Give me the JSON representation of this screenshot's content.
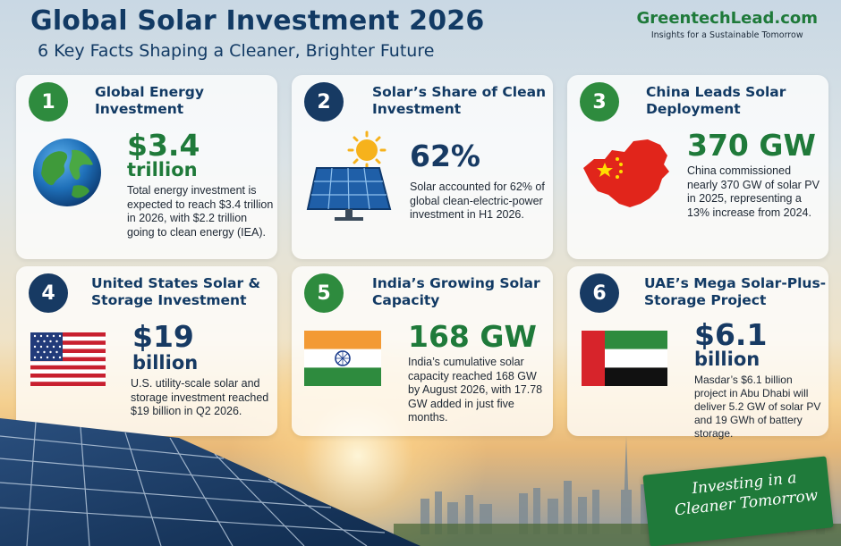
{
  "header": {
    "title": "Global Solar Investment 2026",
    "subtitle": "6 Key Facts Shaping a Cleaner, Brighter Future",
    "brand_name": "GreentechLead.com",
    "brand_tagline": "Insights for a Sustainable Tomorrow"
  },
  "cards": [
    {
      "number": "1",
      "title": "Global Energy Investment",
      "stat_main": "$3.4",
      "stat_unit": "trillion",
      "description": "Total energy investment is expected to reach $3.4 trillion in 2026, with $2.2 trillion going to clean energy (IEA).",
      "icon": "globe-icon",
      "badge_color": "#2e8b3e"
    },
    {
      "number": "2",
      "title": "Solar’s Share of Clean Investment",
      "stat_main": "62%",
      "description": "Solar accounted for 62% of global clean-electric-power investment in H1 2026.",
      "icon": "solar-panel-icon",
      "badge_color": "#173a63"
    },
    {
      "number": "3",
      "title": "China Leads Solar Deployment",
      "stat_main": "370 GW",
      "description": "China commissioned nearly 370 GW of solar PV in 2025, representing a 13% increase from 2024.",
      "icon": "china-map-flag-icon",
      "badge_color": "#2e8b3e"
    },
    {
      "number": "4",
      "title": "United States Solar & Storage Investment",
      "stat_main": "$19",
      "stat_unit": "billion",
      "description": "U.S. utility-scale solar and storage investment reached $19 billion in Q2 2026.",
      "icon": "us-flag-icon",
      "badge_color": "#173a63"
    },
    {
      "number": "5",
      "title": "India’s Growing Solar Capacity",
      "stat_main": "168 GW",
      "description": "India’s cumulative solar capacity reached 168 GW by August 2026, with 17.78 GW added in just five months.",
      "icon": "india-flag-icon",
      "badge_color": "#2e8b3e"
    },
    {
      "number": "6",
      "title": "UAE’s Mega Solar-Plus-Storage Project",
      "stat_main": "$6.1",
      "stat_unit": "billion",
      "description": "Masdar’s $6.1 billion project in Abu Dhabi will deliver 5.2 GW of solar PV and 19 GWh of battery storage.",
      "icon": "uae-flag-icon",
      "badge_color": "#173a63"
    }
  ],
  "banner": {
    "line1": "Investing in a",
    "line2": "Cleaner Tomorrow"
  },
  "colors": {
    "navy": "#123a64",
    "green": "#1f7a3a"
  }
}
